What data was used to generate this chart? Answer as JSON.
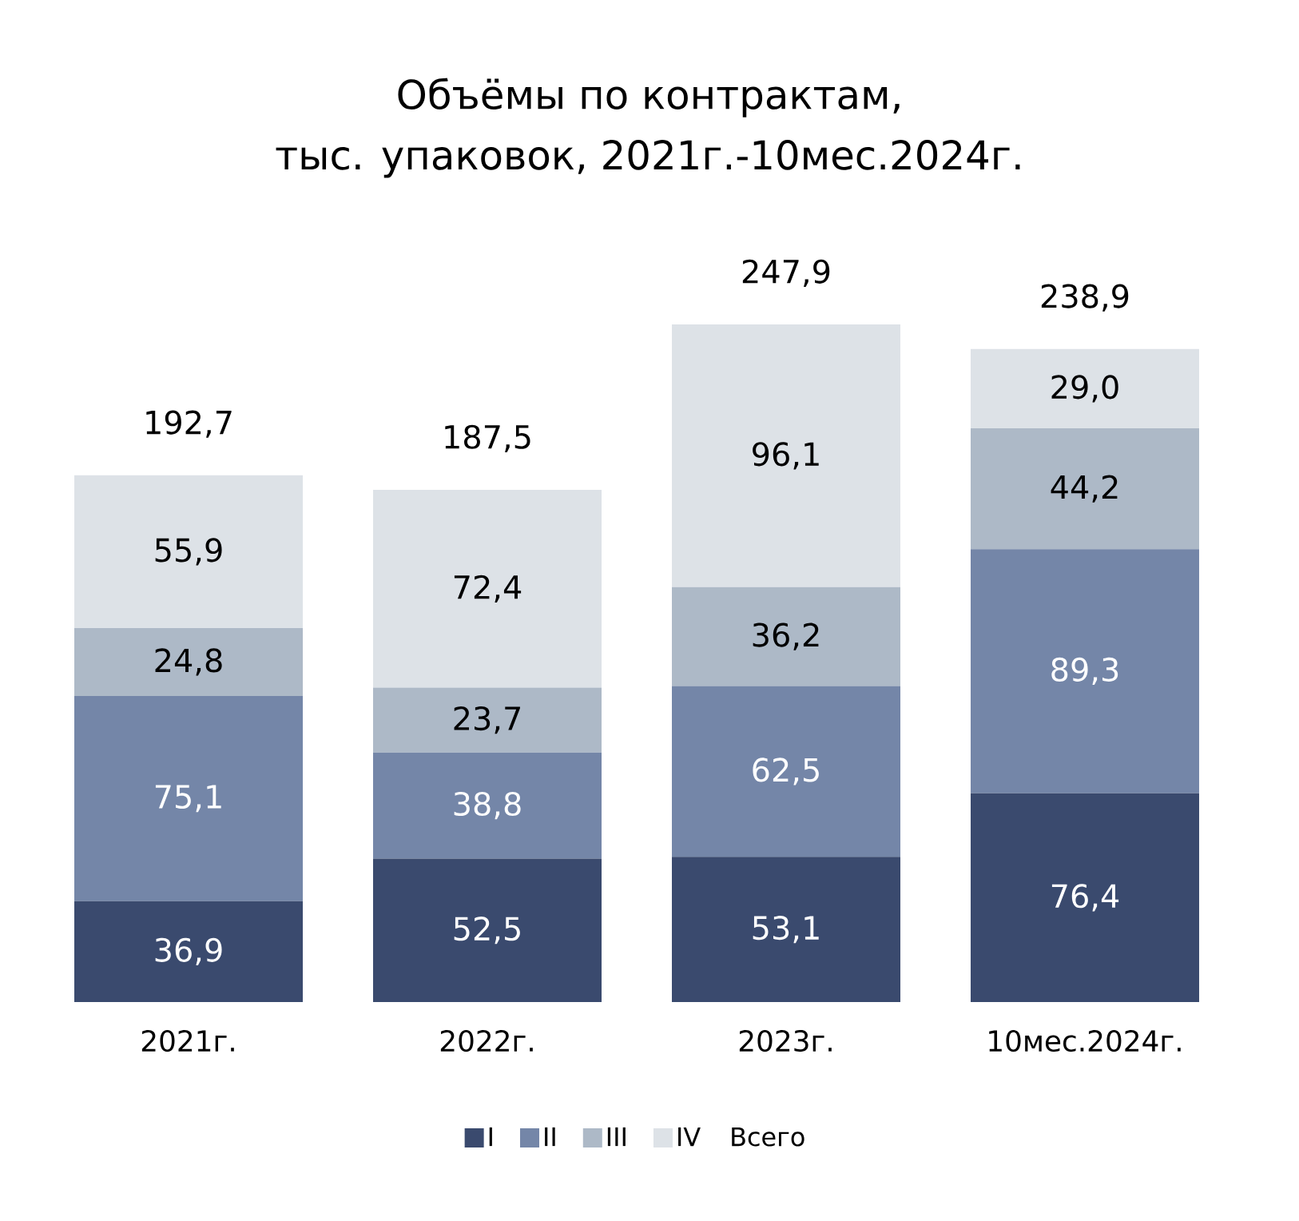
{
  "chart_data": {
    "type": "bar",
    "stacked": true,
    "title": "Объёмы по контрактам,\nтыс. упаковок, 2021г.-10мес.2024г.",
    "categories": [
      "2021г.",
      "2022г.",
      "2023г.",
      "10мес.2024г."
    ],
    "series": [
      {
        "name": "I",
        "color": "#3a4a6e",
        "values": [
          36.9,
          52.5,
          53.1,
          76.4
        ],
        "value_labels": [
          "36,9",
          "52,5",
          "53,1",
          "76,4"
        ]
      },
      {
        "name": "II",
        "color": "#7486a8",
        "values": [
          75.1,
          38.8,
          62.5,
          89.3
        ],
        "value_labels": [
          "75,1",
          "38,8",
          "62,5",
          "89,3"
        ]
      },
      {
        "name": "III",
        "color": "#adb9c7",
        "values": [
          24.8,
          23.7,
          36.2,
          44.2
        ],
        "value_labels": [
          "24,8",
          "23,7",
          "36,2",
          "44,2"
        ]
      },
      {
        "name": "IV",
        "color": "#dde2e7",
        "values": [
          55.9,
          72.4,
          96.1,
          29.0
        ],
        "value_labels": [
          "55,9",
          "72,4",
          "96,1",
          "29,0"
        ]
      }
    ],
    "totals": [
      "192,7",
      "187,5",
      "247,9",
      "238,9"
    ],
    "annotations": [
      "Всего"
    ],
    "legend": "bottom"
  }
}
